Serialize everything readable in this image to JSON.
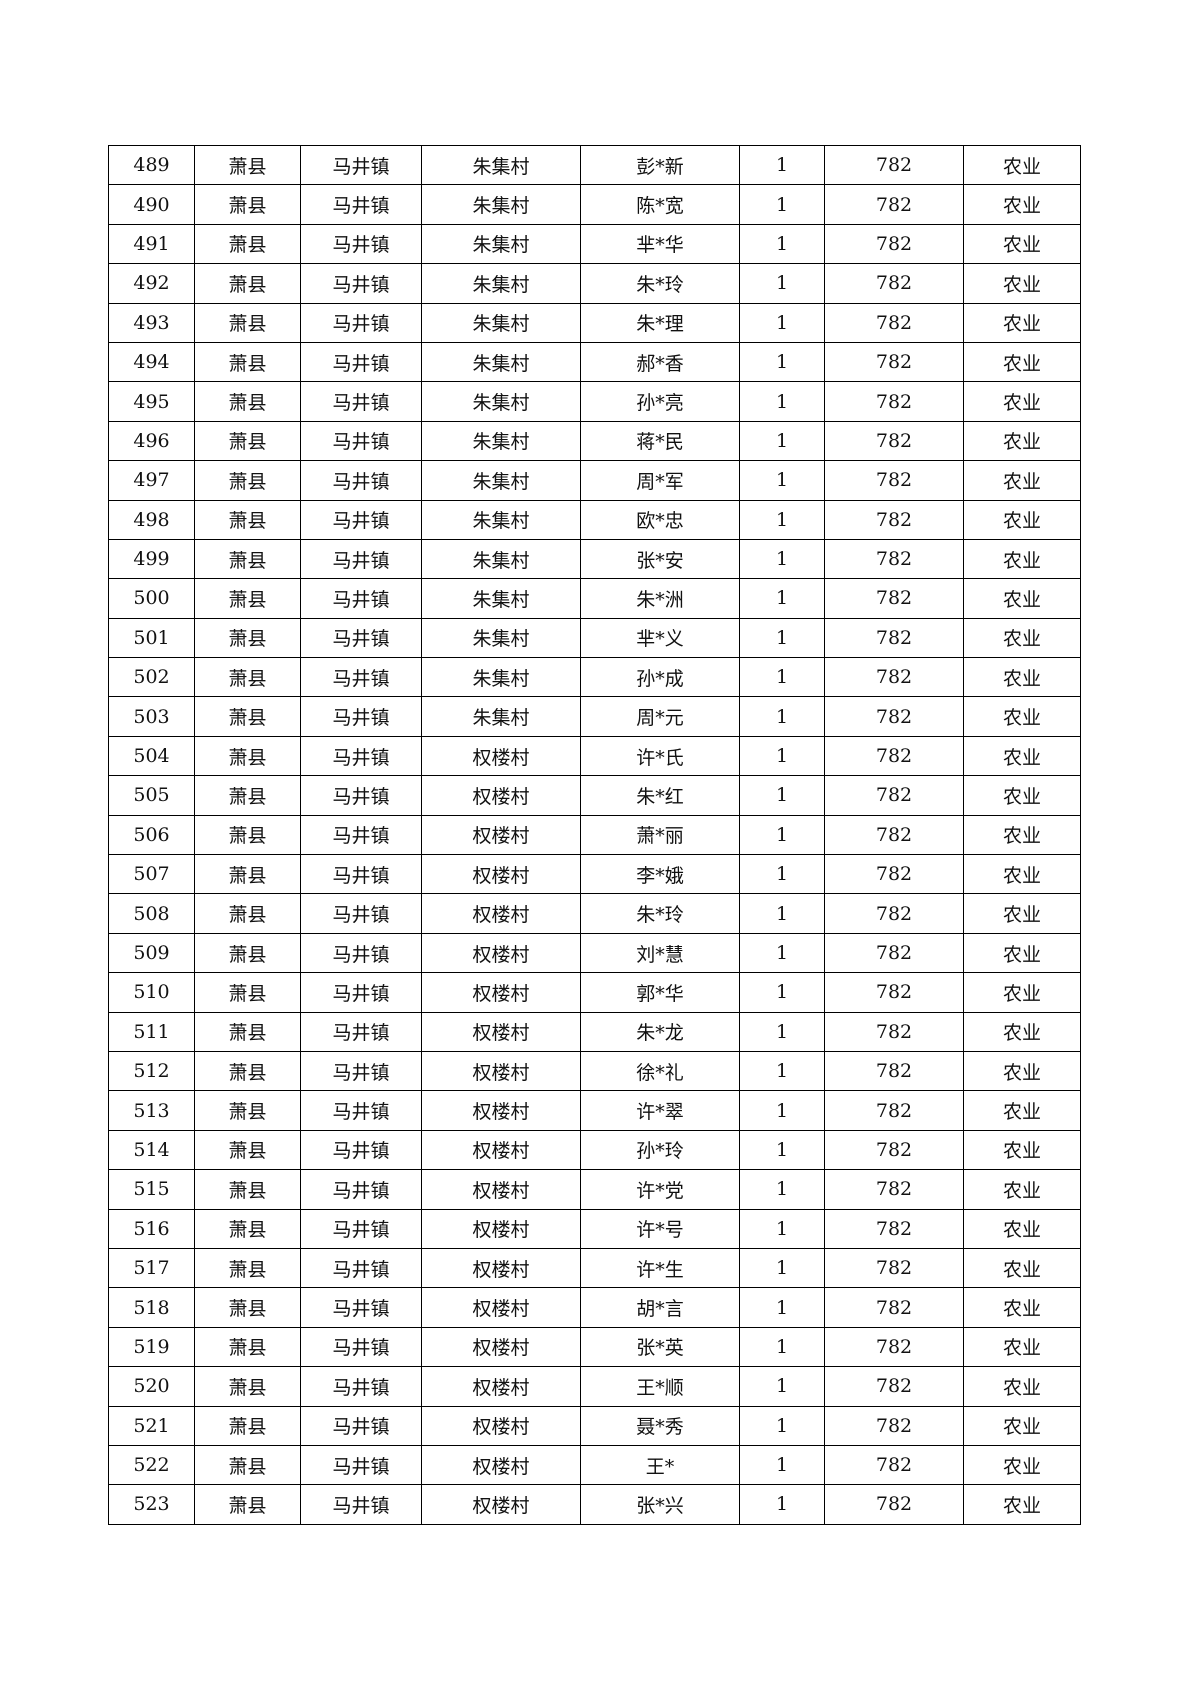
{
  "table": {
    "county": "萧县",
    "town": "马井镇",
    "count": "1",
    "amount": "782",
    "category": "农业",
    "rows": [
      {
        "no": "489",
        "village": "朱集村",
        "name": "彭*新"
      },
      {
        "no": "490",
        "village": "朱集村",
        "name": "陈*宽"
      },
      {
        "no": "491",
        "village": "朱集村",
        "name": "芈*华"
      },
      {
        "no": "492",
        "village": "朱集村",
        "name": "朱*玲"
      },
      {
        "no": "493",
        "village": "朱集村",
        "name": "朱*理"
      },
      {
        "no": "494",
        "village": "朱集村",
        "name": "郝*香"
      },
      {
        "no": "495",
        "village": "朱集村",
        "name": "孙*亮"
      },
      {
        "no": "496",
        "village": "朱集村",
        "name": "蒋*民"
      },
      {
        "no": "497",
        "village": "朱集村",
        "name": "周*军"
      },
      {
        "no": "498",
        "village": "朱集村",
        "name": "欧*忠"
      },
      {
        "no": "499",
        "village": "朱集村",
        "name": "张*安"
      },
      {
        "no": "500",
        "village": "朱集村",
        "name": "朱*洲"
      },
      {
        "no": "501",
        "village": "朱集村",
        "name": "芈*义"
      },
      {
        "no": "502",
        "village": "朱集村",
        "name": "孙*成"
      },
      {
        "no": "503",
        "village": "朱集村",
        "name": "周*元"
      },
      {
        "no": "504",
        "village": "权楼村",
        "name": "许*氏"
      },
      {
        "no": "505",
        "village": "权楼村",
        "name": "朱*红"
      },
      {
        "no": "506",
        "village": "权楼村",
        "name": "萧*丽"
      },
      {
        "no": "507",
        "village": "权楼村",
        "name": "李*娥"
      },
      {
        "no": "508",
        "village": "权楼村",
        "name": "朱*玲"
      },
      {
        "no": "509",
        "village": "权楼村",
        "name": "刘*慧"
      },
      {
        "no": "510",
        "village": "权楼村",
        "name": "郭*华"
      },
      {
        "no": "511",
        "village": "权楼村",
        "name": "朱*龙"
      },
      {
        "no": "512",
        "village": "权楼村",
        "name": "徐*礼"
      },
      {
        "no": "513",
        "village": "权楼村",
        "name": "许*翠"
      },
      {
        "no": "514",
        "village": "权楼村",
        "name": "孙*玲"
      },
      {
        "no": "515",
        "village": "权楼村",
        "name": "许*党"
      },
      {
        "no": "516",
        "village": "权楼村",
        "name": "许*号"
      },
      {
        "no": "517",
        "village": "权楼村",
        "name": "许*生"
      },
      {
        "no": "518",
        "village": "权楼村",
        "name": "胡*言"
      },
      {
        "no": "519",
        "village": "权楼村",
        "name": "张*英"
      },
      {
        "no": "520",
        "village": "权楼村",
        "name": "王*顺"
      },
      {
        "no": "521",
        "village": "权楼村",
        "name": "聂*秀"
      },
      {
        "no": "522",
        "village": "权楼村",
        "name": "王*"
      },
      {
        "no": "523",
        "village": "权楼村",
        "name": "张*兴"
      }
    ]
  }
}
